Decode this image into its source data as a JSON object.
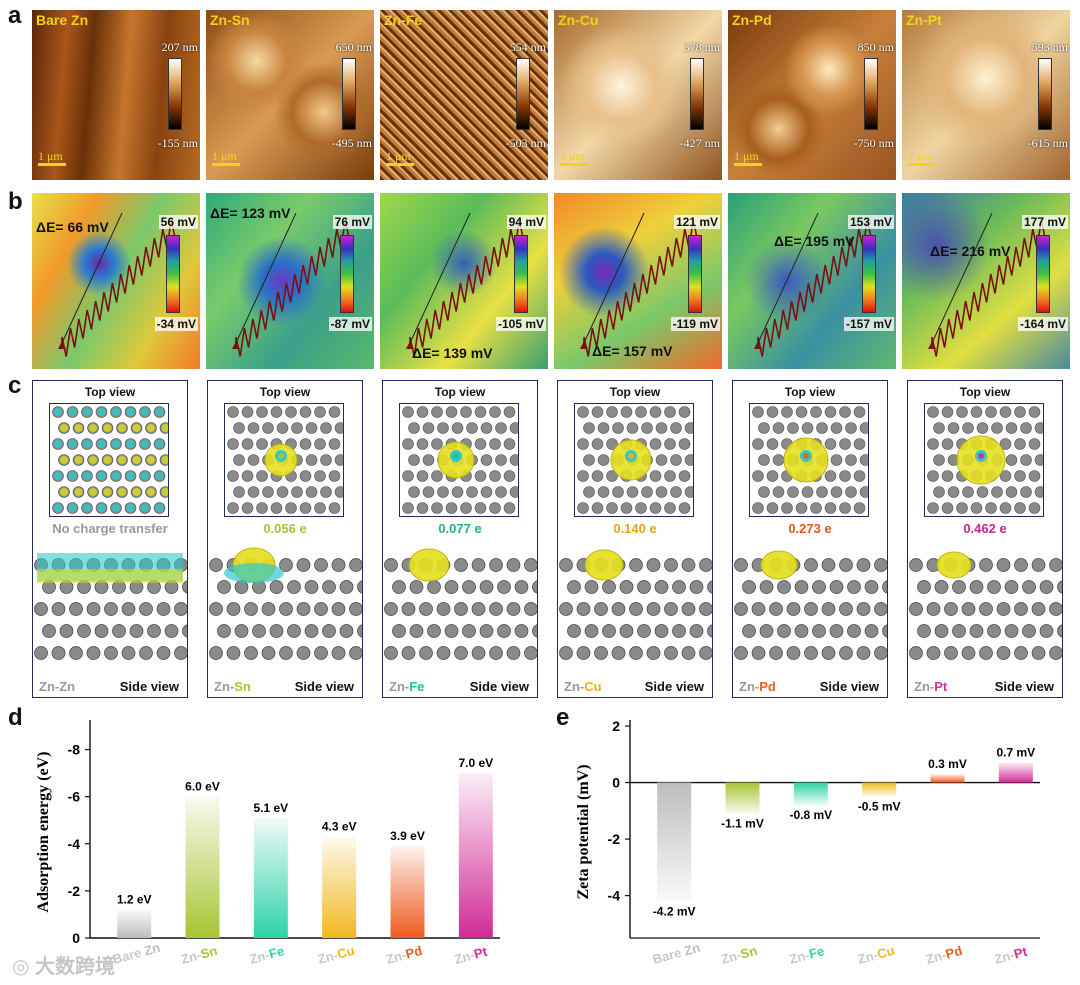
{
  "panel_letters": {
    "a": "a",
    "b": "b",
    "c": "c",
    "d": "d",
    "e": "e"
  },
  "afm": {
    "scale_label": "1 μm",
    "tiles": [
      {
        "label": "Bare Zn",
        "max": "207 nm",
        "min": "-155 nm"
      },
      {
        "label": "Zn-Sn",
        "max": "650 nm",
        "min": "-495 nm"
      },
      {
        "label": "Zn-Fe",
        "max": "554 nm",
        "min": "-503 nm"
      },
      {
        "label": "Zn-Cu",
        "max": "378 nm",
        "min": "-427 nm"
      },
      {
        "label": "Zn-Pd",
        "max": "850 nm",
        "min": "-750 nm"
      },
      {
        "label": "Zn-Pt",
        "max": "593 nm",
        "min": "-615 nm"
      }
    ]
  },
  "kpfm": {
    "tiles": [
      {
        "delta": "ΔE= 66 mV",
        "max": "56 mV",
        "min": "-34 mV"
      },
      {
        "delta": "ΔE= 123 mV",
        "max": "76 mV",
        "min": "-87 mV"
      },
      {
        "delta": "ΔE= 139 mV",
        "max": "94 mV",
        "min": "-105 mV"
      },
      {
        "delta": "ΔE= 157 mV",
        "max": "121 mV",
        "min": "-119 mV"
      },
      {
        "delta": "ΔE= 195 mV",
        "max": "153 mV",
        "min": "-157 mV"
      },
      {
        "delta": "ΔE= 216 mV",
        "max": "177 mV",
        "min": "-164 mV"
      }
    ]
  },
  "dft": {
    "top_view": "Top view",
    "side_view": "Side view",
    "panels": [
      {
        "prefix": "Zn-",
        "metal": "Zn",
        "charge": "No charge transfer",
        "metal_color": "#999999",
        "charge_color": "#999999"
      },
      {
        "prefix": "Zn-",
        "metal": "Sn",
        "charge": "0.056 e",
        "metal_color": "#a8c432",
        "charge_color": "#a8c432"
      },
      {
        "prefix": "Zn-",
        "metal": "Fe",
        "charge": "0.077 e",
        "metal_color": "#1fc29a",
        "charge_color": "#1fb08c"
      },
      {
        "prefix": "Zn-",
        "metal": "Cu",
        "charge": "0.140 e",
        "metal_color": "#e8b218",
        "charge_color": "#e0a812"
      },
      {
        "prefix": "Zn-",
        "metal": "Pd",
        "charge": "0.273 e",
        "metal_color": "#e8601c",
        "charge_color": "#e0561a"
      },
      {
        "prefix": "Zn-",
        "metal": "Pt",
        "charge": "0.462 e",
        "metal_color": "#d1329a",
        "charge_color": "#c8268e"
      }
    ]
  },
  "chart_data": [
    {
      "type": "bar",
      "title": "",
      "ylabel": "Adsorption energy (eV)",
      "xlabel": "",
      "ylim": [
        0,
        -9
      ],
      "yticks": [
        "0",
        "-2",
        "-4",
        "-6",
        "-8"
      ],
      "categories": [
        {
          "prefix": "Bare ",
          "metal": "Zn",
          "color": "#bdbdbd"
        },
        {
          "prefix": "Zn-",
          "metal": "Sn",
          "color": "#a8c432"
        },
        {
          "prefix": "Zn-",
          "metal": "Fe",
          "color": "#2ed3a6"
        },
        {
          "prefix": "Zn-",
          "metal": "Cu",
          "color": "#f0b820"
        },
        {
          "prefix": "Zn-",
          "metal": "Pd",
          "color": "#ee5a1e"
        },
        {
          "prefix": "Zn-",
          "metal": "Pt",
          "color": "#d12c96"
        }
      ],
      "values": [
        -1.2,
        -6.0,
        -5.1,
        -4.3,
        -3.9,
        -7.0
      ],
      "data_labels": [
        "1.2 eV",
        "6.0 eV",
        "5.1 eV",
        "4.3 eV",
        "3.9 eV",
        "7.0 eV"
      ]
    },
    {
      "type": "bar",
      "title": "",
      "ylabel": "Zeta potential (mV)",
      "xlabel": "",
      "ylim": [
        -5.5,
        2
      ],
      "yticks": [
        "2",
        "0",
        "-2",
        "-4"
      ],
      "categories": [
        {
          "prefix": "Bare ",
          "metal": "Zn",
          "color": "#bdbdbd"
        },
        {
          "prefix": "Zn-",
          "metal": "Sn",
          "color": "#a8c432"
        },
        {
          "prefix": "Zn-",
          "metal": "Fe",
          "color": "#2ed3a6"
        },
        {
          "prefix": "Zn-",
          "metal": "Cu",
          "color": "#f0b820"
        },
        {
          "prefix": "Zn-",
          "metal": "Pd",
          "color": "#ee5a1e"
        },
        {
          "prefix": "Zn-",
          "metal": "Pt",
          "color": "#d12c96"
        }
      ],
      "values": [
        -4.2,
        -1.1,
        -0.8,
        -0.5,
        0.3,
        0.7
      ],
      "data_labels": [
        "-4.2 mV",
        "-1.1 mV",
        "-0.8 mV",
        "-0.5 mV",
        "0.3 mV",
        "0.7 mV"
      ]
    }
  ],
  "watermark": "大数跨境"
}
